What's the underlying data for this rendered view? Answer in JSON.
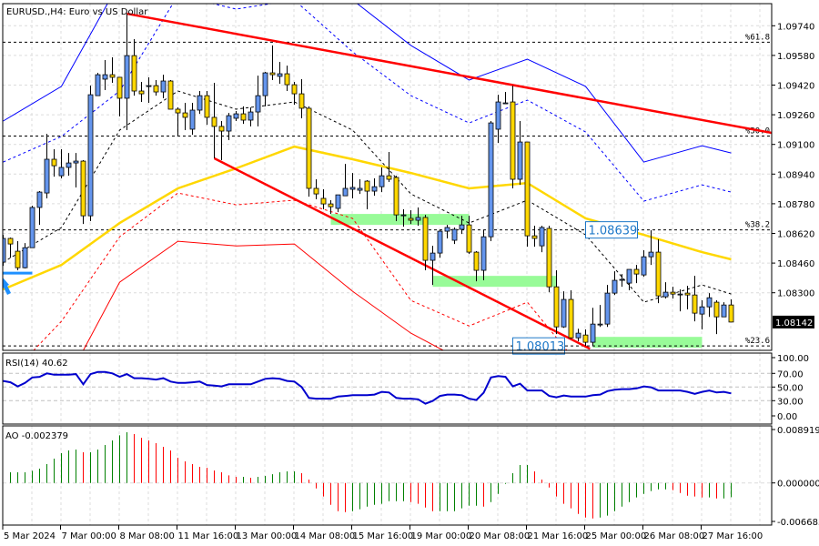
{
  "header": {
    "title": "EURUSD.,H4:  Euro vs US Dollar",
    "current_price": "1.08142"
  },
  "colors": {
    "bull_candle": "#6495ED",
    "bear_candle": "#FFD700",
    "trendline": "#FF0000",
    "moving_average": "#FFD700",
    "bollinger_upper": "#0000FF",
    "bollinger_lower": "#FF0000",
    "support_zone": "#98FB98",
    "rsi_line": "#0000CD",
    "ao_up": "#008000",
    "ao_down": "#FF0000",
    "price_box": "#1E78C8"
  },
  "chart_data": [
    {
      "type": "candlestick",
      "title": "EURUSD.,H4:  Euro vs US Dollar",
      "ylim": [
        1.0798,
        1.0993
      ],
      "grid": true,
      "y_tick_labels": [
        "1.09740",
        "1.09580",
        "1.09420",
        "1.09260",
        "1.09100",
        "1.08940",
        "1.08780",
        "1.08620",
        "1.08460",
        "1.08300"
      ],
      "x_tick_labels": [
        "5 Mar 2024",
        "7 Mar 00:00",
        "8 Mar 08:00",
        "11 Mar 16:00",
        "13 Mar 00:00",
        "14 Mar 08:00",
        "15 Mar 16:00",
        "19 Mar 00:00",
        "20 Mar 08:00",
        "21 Mar 16:00",
        "25 Mar 00:00",
        "26 Mar 08:00",
        "27 Mar 16:00"
      ],
      "x_tick_every_bars": 8,
      "candles_ohlc": [
        [
          1.08465,
          1.08612,
          1.08445,
          1.08593
        ],
        [
          1.08593,
          1.08597,
          1.08489,
          1.08563
        ],
        [
          1.08524,
          1.08578,
          1.08421,
          1.08435
        ],
        [
          1.08435,
          1.08568,
          1.08431,
          1.08543
        ],
        [
          1.08543,
          1.08769,
          1.08543,
          1.0876
        ],
        [
          1.0876,
          1.08848,
          1.08666,
          1.08843
        ],
        [
          1.08838,
          1.09157,
          1.08809,
          1.0902
        ],
        [
          1.0902,
          1.09074,
          1.08926,
          1.08985
        ],
        [
          1.08931,
          1.09074,
          1.08917,
          1.08976
        ],
        [
          1.08976,
          1.09054,
          1.08931,
          1.09
        ],
        [
          1.09,
          1.09054,
          1.08868,
          1.0901
        ],
        [
          1.0901,
          1.09015,
          1.08671,
          1.08715
        ],
        [
          1.08715,
          1.09417,
          1.08686,
          1.09368
        ],
        [
          1.09363,
          1.09486,
          1.09363,
          1.09476
        ],
        [
          1.09452,
          1.09555,
          1.09393,
          1.09476
        ],
        [
          1.09476,
          1.0957,
          1.09432,
          1.09462
        ],
        [
          1.09462,
          1.09462,
          1.09251,
          1.09349
        ],
        [
          1.09349,
          1.09805,
          1.09177,
          1.09579
        ],
        [
          1.09579,
          1.09668,
          1.09363,
          1.09388
        ],
        [
          1.09388,
          1.09437,
          1.09329,
          1.09373
        ],
        [
          1.09417,
          1.09462,
          1.09324,
          1.09417
        ],
        [
          1.09417,
          1.09447,
          1.09363,
          1.09383
        ],
        [
          1.09383,
          1.09476,
          1.09349,
          1.09442
        ],
        [
          1.09442,
          1.09447,
          1.0929,
          1.0929
        ],
        [
          1.0929,
          1.093,
          1.09143,
          1.0927
        ],
        [
          1.0927,
          1.09324,
          1.09177,
          1.09246
        ],
        [
          1.09182,
          1.09324,
          1.09152,
          1.09285
        ],
        [
          1.09285,
          1.09388,
          1.09265,
          1.09363
        ],
        [
          1.09363,
          1.09388,
          1.09206,
          1.09246
        ],
        [
          1.09246,
          1.09432,
          1.09025,
          1.09197
        ],
        [
          1.09197,
          1.09226,
          1.09015,
          1.09172
        ],
        [
          1.09172,
          1.0927,
          1.09123,
          1.09255
        ],
        [
          1.09241,
          1.0928,
          1.09226,
          1.09265
        ],
        [
          1.09265,
          1.09305,
          1.09211,
          1.09231
        ],
        [
          1.09231,
          1.093,
          1.09197,
          1.09275
        ],
        [
          1.09275,
          1.09471,
          1.09197,
          1.09363
        ],
        [
          1.09363,
          1.09491,
          1.09305,
          1.09486
        ],
        [
          1.09486,
          1.09634,
          1.09447,
          1.09476
        ],
        [
          1.09467,
          1.09545,
          1.09427,
          1.09481
        ],
        [
          1.09481,
          1.09525,
          1.09388,
          1.09422
        ],
        [
          1.09422,
          1.09437,
          1.09314,
          1.09373
        ],
        [
          1.09373,
          1.09452,
          1.09241,
          1.09295
        ],
        [
          1.09295,
          1.09305,
          1.08818,
          1.08863
        ],
        [
          1.08863,
          1.08912,
          1.08804,
          1.08833
        ],
        [
          1.08809,
          1.08858,
          1.0875,
          1.08779
        ],
        [
          1.08779,
          1.08799,
          1.08725,
          1.08764
        ],
        [
          1.08755,
          1.08828,
          1.08735,
          1.08828
        ],
        [
          1.08823,
          1.08995,
          1.08823,
          1.08863
        ],
        [
          1.08858,
          1.08946,
          1.08809,
          1.08868
        ],
        [
          1.08853,
          1.08912,
          1.08833,
          1.08863
        ],
        [
          1.08902,
          1.08907,
          1.0875,
          1.08848
        ],
        [
          1.08848,
          1.08917,
          1.08823,
          1.08872
        ],
        [
          1.08872,
          1.08976,
          1.08843,
          1.08931
        ],
        [
          1.08931,
          1.09059,
          1.08897,
          1.08912
        ],
        [
          1.08922,
          1.08931,
          1.08686,
          1.0872
        ],
        [
          1.0872,
          1.0875,
          1.08656,
          1.0872
        ],
        [
          1.08701,
          1.08745,
          1.08671,
          1.08691
        ],
        [
          1.08691,
          1.0876,
          1.08661,
          1.08706
        ],
        [
          1.08706,
          1.0872,
          1.08421,
          1.08475
        ],
        [
          1.08475,
          1.08553,
          1.08342,
          1.08514
        ],
        [
          1.08514,
          1.08642,
          1.08489,
          1.08632
        ],
        [
          1.08632,
          1.08666,
          1.08593,
          1.08652
        ],
        [
          1.08583,
          1.08652,
          1.08563,
          1.08642
        ],
        [
          1.08642,
          1.08715,
          1.08617,
          1.08666
        ],
        [
          1.08666,
          1.08715,
          1.08509,
          1.08519
        ],
        [
          1.08519,
          1.08524,
          1.08362,
          1.08421
        ],
        [
          1.08421,
          1.08637,
          1.08367,
          1.08602
        ],
        [
          1.08602,
          1.09226,
          1.08578,
          1.09216
        ],
        [
          1.09182,
          1.09368,
          1.09108,
          1.09329
        ],
        [
          1.09324,
          1.09383,
          1.09319,
          1.09324
        ],
        [
          1.09329,
          1.09417,
          1.08863,
          1.08912
        ],
        [
          1.08912,
          1.09226,
          1.08882,
          1.09113
        ],
        [
          1.09113,
          1.09113,
          1.08548,
          1.08607
        ],
        [
          1.08607,
          1.08661,
          1.08548,
          1.08593
        ],
        [
          1.08553,
          1.08661,
          1.08519,
          1.08652
        ],
        [
          1.08647,
          1.08661,
          1.08303,
          1.08332
        ],
        [
          1.08332,
          1.08421,
          1.08077,
          1.08116
        ],
        [
          1.08116,
          1.08308,
          1.08111,
          1.08264
        ],
        [
          1.08264,
          1.08313,
          1.08052,
          1.08057
        ],
        [
          1.08057,
          1.08106,
          1.08038,
          1.08082
        ],
        [
          1.08072,
          1.08102,
          1.08013,
          1.08033
        ],
        [
          1.08033,
          1.08219,
          1.08013,
          1.08131
        ],
        [
          1.08131,
          1.08234,
          1.08116,
          1.08131
        ],
        [
          1.08131,
          1.08342,
          1.08116,
          1.08298
        ],
        [
          1.08298,
          1.08416,
          1.08288,
          1.08367
        ],
        [
          1.08372,
          1.08401,
          1.08332,
          1.08372
        ],
        [
          1.08352,
          1.08426,
          1.08313,
          1.08426
        ],
        [
          1.08426,
          1.0845,
          1.08352,
          1.08401
        ],
        [
          1.08396,
          1.08529,
          1.08386,
          1.08494
        ],
        [
          1.08494,
          1.08637,
          1.0845,
          1.08519
        ],
        [
          1.08519,
          1.08588,
          1.08244,
          1.08283
        ],
        [
          1.08278,
          1.08357,
          1.08269,
          1.08303
        ],
        [
          1.08303,
          1.08332,
          1.08269,
          1.08293
        ],
        [
          1.08293,
          1.08318,
          1.082,
          1.08293
        ],
        [
          1.08298,
          1.08337,
          1.0821,
          1.08288
        ],
        [
          1.08288,
          1.08391,
          1.08146,
          1.0819
        ],
        [
          1.08185,
          1.08259,
          1.08102,
          1.08224
        ],
        [
          1.08224,
          1.08298,
          1.0817,
          1.08273
        ],
        [
          1.08249,
          1.08259,
          1.08077,
          1.0817
        ],
        [
          1.0817,
          1.08249,
          1.0817,
          1.08234
        ],
        [
          1.08234,
          1.08264,
          1.08141,
          1.08142
        ]
      ],
      "indicator_bars": [
        0,
        8,
        16,
        24,
        32,
        40,
        48,
        56,
        64,
        72,
        80,
        88,
        96,
        100
      ],
      "indicators": [
        {
          "kind": "moving-average",
          "color": "#FFD700",
          "style": "solid",
          "values": [
            1.08318,
            1.0845,
            1.08676,
            1.08863,
            1.08971,
            1.09088,
            1.0902,
            1.08946,
            1.08863,
            1.08892,
            1.08701,
            1.08612,
            1.08519,
            1.0848
          ]
        },
        {
          "kind": "band-upper-outer",
          "color": "#0000FF",
          "style": "solid",
          "values": [
            1.09226,
            1.09413,
            1.09977,
            1.10124,
            1.10173,
            1.10075,
            1.09879,
            1.09634,
            1.09447,
            1.0956,
            1.09413,
            1.09005,
            1.09093,
            1.09054
          ]
        },
        {
          "kind": "band-upper-inner",
          "color": "#0000FF",
          "style": "dashed",
          "values": [
            1.09005,
            1.09143,
            1.09388,
            1.09904,
            1.0983,
            1.09879,
            1.09599,
            1.09363,
            1.09216,
            1.09339,
            1.09167,
            1.08794,
            1.08882,
            1.08843
          ]
        },
        {
          "kind": "band-middle",
          "color": "#000000",
          "style": "dashed",
          "values": [
            1.08465,
            1.08652,
            1.09177,
            1.09388,
            1.0929,
            1.09329,
            1.09177,
            1.08833,
            1.08676,
            1.08799,
            1.08612,
            1.08249,
            1.08342,
            1.08293
          ]
        },
        {
          "kind": "band-lower-inner",
          "color": "#FF0000",
          "style": "dashed",
          "values": [
            1.07817,
            1.08146,
            1.08602,
            1.08838,
            1.08774,
            1.08799,
            1.08701,
            1.08259,
            1.08121,
            1.08249,
            1.07866,
            1.07719,
            1.07768,
            1.07744
          ]
        },
        {
          "kind": "band-lower-outer",
          "color": "#FF0000",
          "style": "solid",
          "values": [
            1.07326,
            1.07768,
            1.08357,
            1.08578,
            1.08553,
            1.08563,
            1.08308,
            1.08082,
            1.07915,
            1.07719,
            1.07571,
            1.07522,
            1.07571,
            1.07547
          ]
        }
      ],
      "trendlines": [
        {
          "from_bar": 17,
          "from_price": 1.09805,
          "to_bar": 105.6,
          "to_price": 1.09162
        },
        {
          "from_bar": 29,
          "from_price": 1.09025,
          "to_bar": 80.6,
          "to_price": 1.07998
        }
      ],
      "fibonacci_levels": [
        {
          "label": "%61.8",
          "price": 1.09651
        },
        {
          "label": "%50.0",
          "price": 1.09145
        },
        {
          "label": "%38.2",
          "price": 1.08639
        },
        {
          "label": "%23.6",
          "price": 1.08013
        }
      ],
      "support_zones": [
        {
          "from_bar": 45,
          "to_bar": 64,
          "top": 1.08725,
          "bottom": 1.08666
        },
        {
          "from_bar": 59,
          "to_bar": 76,
          "top": 1.08391,
          "bottom": 1.08332
        },
        {
          "from_bar": 81,
          "to_bar": 96,
          "top": 1.08062,
          "bottom": 1.08003
        }
      ],
      "price_labels": [
        {
          "text": "1.08639",
          "price": 1.08639,
          "bar": 80
        },
        {
          "text": "1.08013",
          "price": 1.08013,
          "bar": 70
        }
      ],
      "marker_line": {
        "price": 1.08406,
        "from_bar": 0,
        "to_bar": 4,
        "color": "#1E90FF"
      }
    },
    {
      "type": "line",
      "title": "RSI(14) 40.62",
      "ylim": [
        0,
        100
      ],
      "y_tick_labels": [
        "100.00",
        "70.00",
        "50.00",
        "30.00",
        "0.00"
      ],
      "levels": [
        70,
        50,
        30
      ],
      "values": [
        58.9,
        57,
        51,
        56,
        64,
        65,
        70,
        68,
        68,
        68,
        69,
        54,
        69,
        72,
        72,
        70,
        65,
        69,
        63,
        63,
        62,
        61,
        63,
        58,
        56,
        56,
        57,
        58,
        53,
        52,
        51,
        54,
        54,
        54,
        54,
        58,
        62,
        63,
        62,
        59,
        58,
        50,
        34,
        33,
        33,
        33,
        36,
        37,
        38,
        38,
        38,
        39,
        43,
        42,
        34,
        33,
        33,
        32,
        25.6,
        29.6,
        37,
        39,
        39,
        38,
        33,
        31,
        41.6,
        64,
        66,
        65,
        51,
        55,
        45,
        45,
        45,
        37,
        35,
        37.6,
        36,
        36,
        36,
        38,
        39,
        44,
        46,
        47,
        47,
        48,
        51,
        49.6,
        45,
        45,
        45,
        45,
        43,
        40,
        43,
        45,
        42,
        43,
        40.62
      ]
    },
    {
      "type": "bar",
      "title": "AO -0.002379",
      "ylim": [
        -0.006683,
        0.008919
      ],
      "y_tick_labels": [
        "0.008919",
        "0.000000",
        "-0.006683"
      ],
      "values": [
        null,
        0.00177,
        0.00177,
        0.00177,
        0.00202,
        0.00237,
        0.00313,
        0.00404,
        0.00495,
        0.0054,
        0.00556,
        0.0051,
        0.0051,
        0.00556,
        0.00631,
        0.00707,
        0.00793,
        0.00843,
        0.00813,
        0.00752,
        0.00707,
        0.00662,
        0.00601,
        0.0054,
        0.00419,
        0.00359,
        0.00313,
        0.00268,
        0.00253,
        0.00207,
        0.00177,
        0.00126,
        0.00101,
        0.00101,
        0.00086,
        0.00101,
        0.00116,
        0.00146,
        0.00177,
        0.00192,
        0.00192,
        0.00162,
        0.00056,
        -0.00091,
        -0.00227,
        -0.00364,
        -0.0047,
        -0.00485,
        -0.0047,
        -0.00439,
        -0.00394,
        -0.00364,
        -0.00348,
        -0.00303,
        -0.00303,
        -0.00303,
        -0.00318,
        -0.00348,
        -0.00409,
        -0.0047,
        -0.0047,
        -0.0047,
        -0.0047,
        -0.00424,
        -0.00379,
        -0.00379,
        -0.00394,
        -0.00318,
        -0.00182,
        -0.00015,
        0.00162,
        0.00298,
        0.00298,
        0.00192,
        0.00056,
        -0.00076,
        -0.00227,
        -0.00348,
        -0.00424,
        -0.00515,
        -0.00576,
        -0.00591,
        -0.00576,
        -0.00545,
        -0.0047,
        -0.00394,
        -0.00318,
        -0.00242,
        -0.00182,
        -0.00136,
        -0.00106,
        -0.00106,
        -0.00121,
        -0.00167,
        -0.00212,
        -0.00227,
        -0.00242,
        -0.00242,
        -0.00258,
        -0.00258,
        -0.00238
      ]
    }
  ]
}
